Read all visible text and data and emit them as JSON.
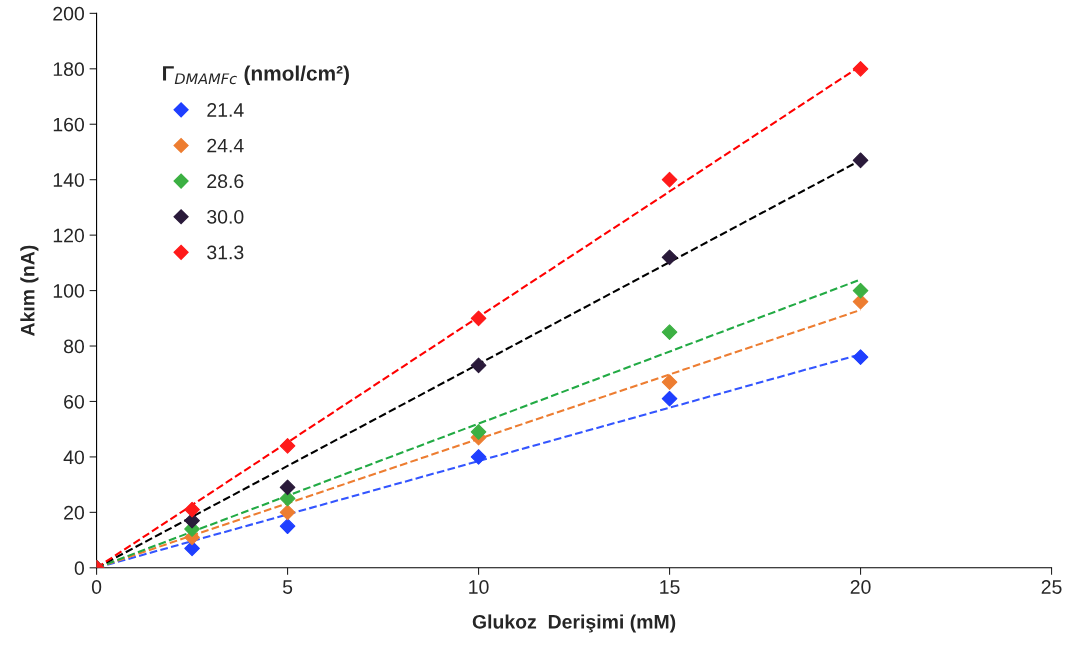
{
  "chart_data": {
    "type": "scatter",
    "xlabel": "Glukoz  Derişimi (mM)",
    "ylabel": "Akım (nA)",
    "legend_title": "Γ$_{DMAMFc}$ (nmol/cm²)",
    "xlim": [
      0,
      25
    ],
    "xticks": [
      0,
      5,
      10,
      15,
      20,
      25
    ],
    "ylim": [
      0,
      200
    ],
    "yticks": [
      0,
      20,
      40,
      60,
      80,
      100,
      120,
      140,
      160,
      180,
      200
    ],
    "grid": false,
    "legend": "top left",
    "marker": "diamond",
    "series": [
      {
        "name": "21.4",
        "color": "#1f3fff",
        "x": [
          0,
          2.5,
          5,
          10,
          15,
          20
        ],
        "values": [
          0,
          7,
          15,
          40,
          61,
          76
        ]
      },
      {
        "name": "24.4",
        "color": "#ed7d31",
        "x": [
          0,
          2.5,
          5,
          10,
          15,
          20
        ],
        "values": [
          0,
          11,
          20,
          47,
          67,
          96
        ]
      },
      {
        "name": "28.6",
        "color": "#3cb043",
        "x": [
          0,
          2.5,
          5,
          10,
          15,
          20
        ],
        "values": [
          0,
          14,
          25,
          49,
          85,
          100
        ]
      },
      {
        "name": "30.0",
        "color": "#2a1a3a",
        "x": [
          0,
          2.5,
          5,
          10,
          15,
          20
        ],
        "values": [
          0,
          17,
          29,
          73,
          112,
          147
        ]
      },
      {
        "name": "31.3",
        "color": "#ff1a1a",
        "x": [
          0,
          2.5,
          5,
          10,
          15,
          20
        ],
        "values": [
          0,
          21,
          44,
          90,
          140,
          180
        ]
      },
      {
        "type": "line",
        "color": "#3355ff",
        "line_style": "dashed",
        "marker": "none",
        "x": [
          0,
          20
        ],
        "values": [
          0,
          77
        ]
      },
      {
        "type": "line",
        "color": "#ed7d31",
        "line_style": "dashed",
        "marker": "none",
        "x": [
          0,
          20
        ],
        "values": [
          0,
          93
        ]
      },
      {
        "type": "line",
        "color": "#22aa44",
        "line_style": "dashed",
        "marker": "none",
        "x": [
          0,
          20
        ],
        "values": [
          0,
          104
        ]
      },
      {
        "type": "line",
        "color": "#000000",
        "line_style": "dashed",
        "marker": "none",
        "x": [
          0,
          20
        ],
        "values": [
          0,
          147
        ]
      },
      {
        "type": "line",
        "color": "#ff0000",
        "line_style": "dashed",
        "marker": "none",
        "x": [
          0,
          20
        ],
        "values": [
          0,
          181
        ]
      }
    ]
  }
}
